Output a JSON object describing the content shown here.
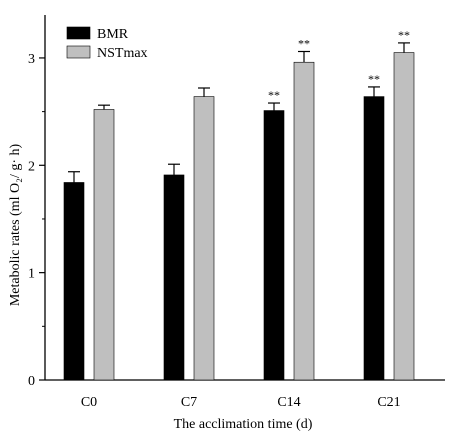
{
  "chart_data": {
    "type": "bar",
    "categories": [
      "C0",
      "C7",
      "C14",
      "C21"
    ],
    "series": [
      {
        "name": "BMR",
        "color": "#000000",
        "values": [
          1.84,
          1.91,
          2.51,
          2.64
        ],
        "errors": [
          0.1,
          0.1,
          0.07,
          0.09
        ],
        "annotations": [
          "",
          "",
          "**",
          "**"
        ]
      },
      {
        "name": "NSTmax",
        "color": "#bfbfbf",
        "values": [
          2.52,
          2.64,
          2.96,
          3.05
        ],
        "errors": [
          0.04,
          0.08,
          0.1,
          0.09
        ],
        "annotations": [
          "",
          "",
          "**",
          "**"
        ]
      }
    ],
    "xlabel": "The acclimation time (d)",
    "ylabel": "Metabolic rates (ml O₂/ g· h)",
    "ylim": [
      0,
      3.4
    ],
    "yticks": [
      0,
      1,
      2,
      3
    ],
    "minor_step": 0.5,
    "legend": "top-left",
    "grid": false
  }
}
